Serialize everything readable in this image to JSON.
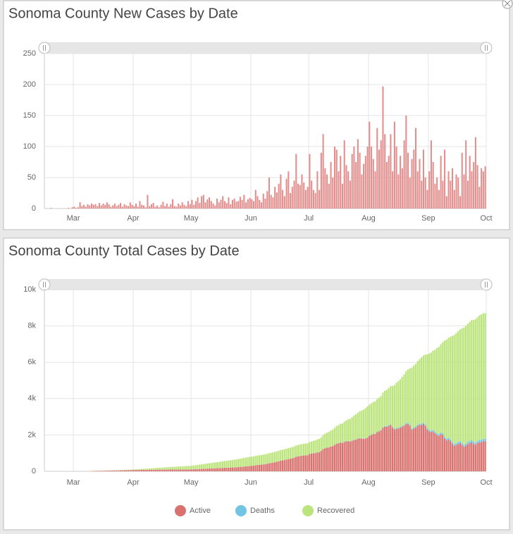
{
  "chart_data": [
    {
      "type": "bar",
      "title": "Sonoma County New Cases by Date",
      "color": "#e38e8c",
      "values": [
        0,
        0,
        0,
        1,
        0,
        0,
        0,
        0,
        0,
        0,
        0,
        0,
        1,
        0,
        2,
        3,
        1,
        2,
        10,
        4,
        6,
        3,
        7,
        5,
        8,
        6,
        7,
        4,
        9,
        5,
        8,
        6,
        10,
        7,
        3,
        5,
        8,
        4,
        6,
        9,
        3,
        7,
        5,
        4,
        10,
        6,
        4,
        8,
        3,
        12,
        6,
        5,
        2,
        22,
        4,
        7,
        9,
        3,
        5,
        2,
        6,
        11,
        4,
        8,
        3,
        7,
        15,
        4,
        3,
        8,
        5,
        10,
        6,
        4,
        12,
        7,
        14,
        6,
        12,
        18,
        9,
        20,
        22,
        10,
        15,
        18,
        12,
        8,
        5,
        16,
        10,
        14,
        20,
        12,
        9,
        18,
        7,
        14,
        16,
        11,
        12,
        19,
        14,
        22,
        10,
        15,
        17,
        15,
        12,
        30,
        20,
        14,
        10,
        24,
        16,
        28,
        50,
        22,
        18,
        35,
        26,
        40,
        55,
        30,
        20,
        48,
        60,
        25,
        35,
        45,
        88,
        40,
        38,
        55,
        42,
        30,
        35,
        88,
        45,
        30,
        25,
        60,
        30,
        90,
        120,
        65,
        55,
        40,
        75,
        50,
        100,
        95,
        60,
        85,
        40,
        110,
        70,
        60,
        45,
        88,
        100,
        75,
        112,
        90,
        55,
        72,
        85,
        100,
        140,
        100,
        80,
        60,
        130,
        95,
        110,
        197,
        120,
        75,
        85,
        120,
        60,
        140,
        100,
        55,
        85,
        65,
        110,
        150,
        90,
        50,
        80,
        95,
        130,
        60,
        80,
        45,
        95,
        50,
        30,
        60,
        110,
        75,
        40,
        50,
        30,
        85,
        45,
        95,
        20,
        60,
        45,
        65,
        30,
        55,
        50,
        20,
        90,
        55,
        110,
        45,
        85,
        60,
        75,
        115,
        70,
        35,
        65,
        60,
        68
      ],
      "xlim": [
        0,
        229
      ],
      "xticks": [
        {
          "value": 15,
          "label": "Mar"
        },
        {
          "value": 46,
          "label": "Apr"
        },
        {
          "value": 76,
          "label": "May"
        },
        {
          "value": 107,
          "label": "Jun"
        },
        {
          "value": 137,
          "label": "Jul"
        },
        {
          "value": 168,
          "label": "Aug"
        },
        {
          "value": 199,
          "label": "Sep"
        },
        {
          "value": 229,
          "label": "Oct"
        }
      ],
      "ylim": [
        0,
        250
      ],
      "yticks": [
        0,
        50,
        100,
        150,
        200,
        250
      ],
      "grid": true
    },
    {
      "type": "bar",
      "stacked": true,
      "title": "Sonoma County Total Cases by Date",
      "legend": "bottom",
      "series": [
        {
          "name": "Active",
          "color": "#d9716f",
          "values": [
            null,
            null,
            null,
            null,
            null,
            null,
            null,
            null,
            null,
            null,
            null,
            null,
            null,
            null,
            null,
            null,
            null,
            null,
            null,
            null,
            null,
            null,
            null,
            null,
            15,
            18,
            20,
            22,
            25,
            28,
            30,
            33,
            35,
            38,
            40,
            42,
            45,
            48,
            50,
            52,
            55,
            58,
            60,
            62,
            65,
            68,
            70,
            72,
            74,
            75,
            76,
            78,
            80,
            82,
            84,
            85,
            86,
            88,
            89,
            90,
            90,
            91,
            92,
            93,
            94,
            95,
            95,
            96,
            96,
            97,
            98,
            98,
            99,
            100,
            100,
            100,
            105,
            110,
            115,
            120,
            125,
            130,
            135,
            140,
            145,
            150,
            155,
            160,
            165,
            170,
            175,
            180,
            185,
            190,
            195,
            200,
            205,
            210,
            215,
            220,
            230,
            240,
            250,
            260,
            270,
            280,
            290,
            300,
            310,
            330,
            345,
            355,
            365,
            380,
            395,
            410,
            440,
            460,
            475,
            500,
            520,
            550,
            580,
            600,
            615,
            640,
            670,
            690,
            715,
            740,
            800,
            820,
            835,
            855,
            870,
            880,
            880,
            950,
            980,
            990,
            1000,
            1040,
            1050,
            1120,
            1220,
            1270,
            1300,
            1310,
            1360,
            1380,
            1450,
            1520,
            1540,
            1580,
            1560,
            1620,
            1650,
            1660,
            1640,
            1680,
            1720,
            1740,
            1790,
            1820,
            1800,
            1780,
            1800,
            1850,
            1950,
            2000,
            2050,
            2050,
            2150,
            2200,
            2250,
            2400,
            2450,
            2450,
            2500,
            2550,
            2400,
            2300,
            2350,
            2350,
            2400,
            2450,
            2500,
            2600,
            2600,
            2500,
            2300,
            2350,
            2400,
            2500,
            2550,
            2550,
            2600,
            2500,
            2300,
            2200,
            2150,
            2200,
            2100,
            2000,
            1950,
            2050,
            2000,
            1800,
            1700,
            1750,
            1650,
            1500,
            1400,
            1450,
            1500,
            1550,
            1450,
            1350,
            1400,
            1500,
            1550,
            1600,
            1500,
            1450,
            1550,
            1600,
            1600,
            1650,
            1650
          ]
        },
        {
          "name": "Deaths",
          "color": "#72c4e3",
          "values": [
            null,
            null,
            null,
            null,
            null,
            null,
            null,
            null,
            null,
            null,
            null,
            null,
            null,
            null,
            null,
            null,
            null,
            null,
            null,
            null,
            null,
            null,
            null,
            null,
            0,
            0,
            0,
            0,
            0,
            0,
            0,
            0,
            0,
            0,
            0,
            0,
            0,
            0,
            0,
            0,
            1,
            1,
            1,
            1,
            1,
            1,
            1,
            1,
            1,
            1,
            1,
            1,
            1,
            1,
            1,
            1,
            2,
            2,
            2,
            2,
            2,
            2,
            2,
            2,
            2,
            2,
            2,
            2,
            2,
            2,
            2,
            2,
            2,
            2,
            2,
            2,
            2,
            2,
            2,
            2,
            2,
            2,
            2,
            2,
            2,
            2,
            2,
            2,
            2,
            2,
            2,
            3,
            3,
            3,
            3,
            3,
            3,
            3,
            3,
            3,
            3,
            3,
            3,
            3,
            3,
            3,
            3,
            3,
            3,
            3,
            3,
            3,
            3,
            3,
            3,
            3,
            3,
            4,
            4,
            4,
            4,
            4,
            4,
            4,
            4,
            4,
            4,
            5,
            5,
            5,
            5,
            5,
            5,
            5,
            5,
            5,
            5,
            5,
            5,
            6,
            6,
            6,
            7,
            7,
            7,
            8,
            8,
            8,
            8,
            9,
            9,
            9,
            10,
            10,
            10,
            11,
            11,
            11,
            12,
            12,
            12,
            13,
            13,
            13,
            14,
            14,
            15,
            15,
            16,
            17,
            18,
            20,
            22,
            24,
            26,
            28,
            30,
            32,
            34,
            36,
            38,
            40,
            42,
            44,
            46,
            48,
            50,
            52,
            55,
            58,
            60,
            62,
            64,
            66,
            68,
            70,
            72,
            74,
            76,
            78,
            80,
            82,
            84,
            86,
            88,
            90,
            92,
            94,
            96,
            98,
            100,
            102,
            104,
            106,
            108,
            110,
            112,
            114,
            116,
            118,
            120,
            122,
            124,
            125,
            126,
            127,
            128,
            129,
            130
          ]
        },
        {
          "name": "Recovered",
          "color": "#bce47c",
          "values": [
            null,
            null,
            null,
            null,
            null,
            null,
            null,
            null,
            null,
            null,
            null,
            null,
            null,
            null,
            null,
            null,
            null,
            null,
            null,
            null,
            null,
            null,
            null,
            null,
            5,
            6,
            6,
            7,
            7,
            8,
            8,
            9,
            10,
            10,
            11,
            12,
            13,
            14,
            15,
            16,
            18,
            20,
            22,
            25,
            28,
            30,
            32,
            36,
            40,
            45,
            50,
            55,
            60,
            66,
            72,
            78,
            84,
            90,
            96,
            102,
            108,
            114,
            120,
            126,
            132,
            138,
            144,
            150,
            156,
            162,
            168,
            174,
            180,
            185,
            190,
            195,
            200,
            210,
            220,
            230,
            240,
            250,
            260,
            270,
            280,
            290,
            300,
            310,
            320,
            330,
            340,
            350,
            360,
            370,
            380,
            390,
            400,
            410,
            420,
            430,
            440,
            450,
            460,
            470,
            480,
            490,
            500,
            505,
            510,
            515,
            520,
            525,
            530,
            535,
            540,
            545,
            550,
            555,
            560,
            565,
            570,
            575,
            580,
            585,
            590,
            595,
            600,
            605,
            610,
            615,
            620,
            625,
            630,
            635,
            640,
            645,
            650,
            650,
            660,
            680,
            700,
            710,
            730,
            740,
            760,
            790,
            820,
            850,
            870,
            900,
            930,
            960,
            990,
            1020,
            1060,
            1100,
            1140,
            1190,
            1240,
            1280,
            1330,
            1380,
            1420,
            1470,
            1530,
            1600,
            1660,
            1700,
            1700,
            1720,
            1750,
            1780,
            1800,
            1830,
            1860,
            1900,
            1950,
            2000,
            2050,
            2100,
            2250,
            2400,
            2480,
            2560,
            2620,
            2700,
            2780,
            2850,
            2950,
            3100,
            3350,
            3400,
            3450,
            3500,
            3550,
            3650,
            3700,
            3850,
            4050,
            4200,
            4300,
            4350,
            4500,
            4700,
            4800,
            4850,
            5000,
            5300,
            5450,
            5500,
            5650,
            5850,
            6000,
            6050,
            6100,
            6150,
            6300,
            6450,
            6500,
            6500,
            6550,
            6600,
            6700,
            6800,
            6800,
            6850,
            6900,
            6920,
            6920
          ]
        }
      ],
      "xlim": [
        0,
        229
      ],
      "xticks": [
        {
          "value": 15,
          "label": "Mar"
        },
        {
          "value": 46,
          "label": "Apr"
        },
        {
          "value": 76,
          "label": "May"
        },
        {
          "value": 107,
          "label": "Jun"
        },
        {
          "value": 137,
          "label": "Jul"
        },
        {
          "value": 168,
          "label": "Aug"
        },
        {
          "value": 199,
          "label": "Sep"
        },
        {
          "value": 229,
          "label": "Oct"
        }
      ],
      "ylim": [
        0,
        10000
      ],
      "yticks": [
        0,
        {
          "value": 2000,
          "label": "2k"
        },
        {
          "value": 4000,
          "label": "4k"
        },
        {
          "value": 6000,
          "label": "6k"
        },
        {
          "value": 8000,
          "label": "8k"
        },
        {
          "value": 10000,
          "label": "10k"
        }
      ],
      "grid": true
    }
  ]
}
